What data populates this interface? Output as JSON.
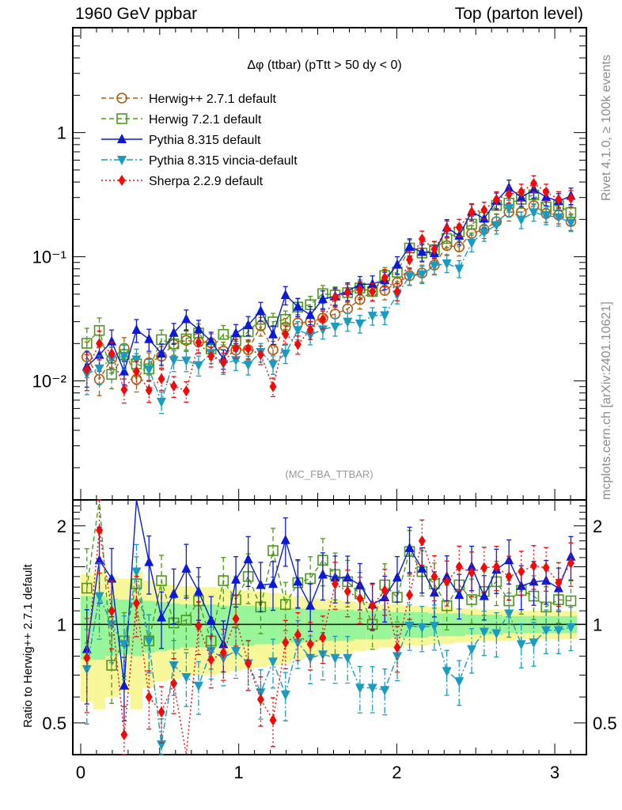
{
  "header": {
    "left": "1960 GeV ppbar",
    "right": "Top (parton level)"
  },
  "side_labels": {
    "rivet": "Rivet 4.1.0, ≥ 100k events",
    "mcplots": "mcplots.cern.ch [arXiv:2401.10621]"
  },
  "chart_data": [
    {
      "type": "scatter",
      "panel": "main",
      "title": "Δφ (ttbar) (pTtt > 50 dy < 0)",
      "annotation": "(MC_FBA_TTBAR)",
      "xlabel": "",
      "ylabel": "",
      "yscale": "log",
      "xlim": [
        -0.05,
        3.2
      ],
      "ylim": [
        0.0011,
        7.0
      ],
      "y_tick_labels": [
        {
          "value": 1,
          "label": "1"
        },
        {
          "value": 0.1,
          "label": "10⁻¹"
        },
        {
          "value": 0.01,
          "label": "10⁻²"
        }
      ],
      "legend_position": "top-left",
      "x": [
        0.039,
        0.118,
        0.196,
        0.275,
        0.353,
        0.432,
        0.511,
        0.589,
        0.668,
        0.746,
        0.825,
        0.903,
        0.982,
        1.06,
        1.139,
        1.217,
        1.296,
        1.374,
        1.453,
        1.532,
        1.61,
        1.689,
        1.767,
        1.846,
        1.924,
        2.003,
        2.081,
        2.16,
        2.238,
        2.317,
        2.395,
        2.474,
        2.553,
        2.631,
        2.71,
        2.788,
        2.867,
        2.945,
        3.024,
        3.102
      ],
      "series": [
        {
          "name": "Herwig++ 2.7.1 default",
          "color": "#b35a0f",
          "marker": "open-circle",
          "line": "dashed",
          "values": [
            0.0156,
            0.0103,
            0.0151,
            0.0183,
            0.0103,
            0.014,
            0.0158,
            0.0197,
            0.0212,
            0.0206,
            0.0203,
            0.0174,
            0.0177,
            0.0178,
            0.0277,
            0.0178,
            0.0272,
            0.0293,
            0.0298,
            0.0321,
            0.0346,
            0.0381,
            0.0452,
            0.0525,
            0.0535,
            0.0621,
            0.0704,
            0.0739,
            0.0856,
            0.123,
            0.12,
            0.154,
            0.166,
            0.192,
            0.229,
            0.229,
            0.258,
            0.223,
            0.217,
            0.192
          ]
        },
        {
          "name": "Herwig 7.2.1 default",
          "color": "#4c9a1c",
          "marker": "open-square",
          "line": "dashed",
          "values": [
            0.0201,
            0.0255,
            0.0113,
            0.0163,
            0.0137,
            0.0125,
            0.0215,
            0.0199,
            0.0218,
            0.0243,
            0.0181,
            0.0237,
            0.0211,
            0.0249,
            0.0313,
            0.0299,
            0.0313,
            0.0393,
            0.0411,
            0.0504,
            0.0491,
            0.0514,
            0.056,
            0.0525,
            0.0706,
            0.0751,
            0.1176,
            0.1072,
            0.1138,
            0.1402,
            0.1584,
            0.1833,
            0.2092,
            0.2592,
            0.2702,
            0.2908,
            0.3148,
            0.252,
            0.2582,
            0.2266
          ]
        },
        {
          "name": "Pythia 8.315 default",
          "color": "#0a1ad6",
          "marker": "filled-triangle-up",
          "line": "solid",
          "values": [
            0.0131,
            0.0162,
            0.0208,
            0.0119,
            0.0258,
            0.0217,
            0.0166,
            0.0244,
            0.0314,
            0.026,
            0.0209,
            0.0151,
            0.0242,
            0.0281,
            0.0366,
            0.0237,
            0.0492,
            0.0396,
            0.034,
            0.0456,
            0.0481,
            0.053,
            0.0597,
            0.0604,
            0.0647,
            0.0863,
            0.1204,
            0.1094,
            0.107,
            0.1722,
            0.1476,
            0.231,
            0.2025,
            0.2822,
            0.3595,
            0.3,
            0.3483,
            0.3033,
            0.28,
            0.31
          ]
        },
        {
          "name": "Pythia 8.315 vincia-default",
          "color": "#1a9bbf",
          "marker": "filled-triangle-down",
          "line": "dash-dot",
          "values": [
            0.0114,
            0.0126,
            0.0151,
            0.0159,
            0.0149,
            0.0124,
            0.0068,
            0.0147,
            0.0146,
            0.0134,
            0.0168,
            0.0137,
            0.0147,
            0.0135,
            0.0171,
            0.0136,
            0.0166,
            0.0257,
            0.0234,
            0.026,
            0.0274,
            0.03,
            0.029,
            0.0335,
            0.0338,
            0.0496,
            0.0697,
            0.0722,
            0.0847,
            0.0884,
            0.0804,
            0.1295,
            0.1576,
            0.18,
            0.247,
            0.199,
            0.228,
            0.214,
            0.208,
            0.188
          ]
        },
        {
          "name": "Sherpa 2.2.9 default",
          "color": "#f00a0a",
          "marker": "filled-diamond",
          "line": "dotted",
          "values": [
            0.0123,
            0.02,
            0.0166,
            0.0085,
            0.0119,
            0.0084,
            0.0104,
            0.0091,
            0.0083,
            0.0204,
            0.0158,
            0.0142,
            0.0184,
            0.0182,
            0.0163,
            0.009,
            0.0238,
            0.0197,
            0.0258,
            0.0313,
            0.047,
            0.0516,
            0.0543,
            0.0525,
            0.0679,
            0.0526,
            0.0947,
            0.139,
            0.115,
            0.168,
            0.173,
            0.229,
            0.238,
            0.289,
            0.32,
            0.333,
            0.39,
            0.333,
            0.29,
            0.296
          ]
        }
      ]
    },
    {
      "type": "scatter",
      "panel": "ratio",
      "ylabel": "Ratio to Herwig++ 2.7.1 default",
      "xlabel": "",
      "yscale": "log",
      "xlim": [
        -0.05,
        3.2
      ],
      "ylim": [
        0.4,
        2.4
      ],
      "y_tick_labels": [
        {
          "value": 2,
          "label": "2"
        },
        {
          "value": 1,
          "label": "1"
        },
        {
          "value": 0.5,
          "label": "0.5"
        }
      ],
      "x_tick_labels": [
        {
          "value": 0,
          "label": "0"
        },
        {
          "value": 1,
          "label": "1"
        },
        {
          "value": 2,
          "label": "2"
        },
        {
          "value": 3,
          "label": "3"
        }
      ],
      "reference_line": 1,
      "bands": {
        "inner_color": "#99f599",
        "outer_color": "#f7f799",
        "inner_halfwidth": [
          0.22,
          0.22,
          0.2,
          0.19,
          0.2,
          0.18,
          0.17,
          0.16,
          0.15,
          0.15,
          0.15,
          0.14,
          0.14,
          0.14,
          0.13,
          0.13,
          0.12,
          0.12,
          0.12,
          0.11,
          0.11,
          0.11,
          0.1,
          0.1,
          0.1,
          0.09,
          0.09,
          0.09,
          0.08,
          0.08,
          0.08,
          0.07,
          0.07,
          0.07,
          0.06,
          0.06,
          0.06,
          0.06,
          0.06,
          0.06
        ],
        "outer_halfwidth": [
          0.42,
          0.45,
          0.4,
          0.38,
          0.45,
          0.36,
          0.33,
          0.32,
          0.31,
          0.3,
          0.3,
          0.29,
          0.28,
          0.27,
          0.26,
          0.25,
          0.24,
          0.22,
          0.21,
          0.2,
          0.19,
          0.18,
          0.17,
          0.16,
          0.15,
          0.15,
          0.14,
          0.14,
          0.13,
          0.13,
          0.12,
          0.12,
          0.11,
          0.11,
          0.11,
          0.1,
          0.1,
          0.1,
          0.1,
          0.1
        ]
      },
      "series": [
        {
          "name": "Herwig 7.2.1 default",
          "values": [
            1.29,
            2.48,
            0.75,
            0.89,
            1.33,
            0.89,
            1.36,
            1.01,
            1.03,
            1.18,
            0.89,
            1.36,
            1.19,
            1.4,
            1.13,
            1.68,
            1.15,
            1.34,
            1.38,
            1.57,
            1.42,
            1.35,
            1.24,
            1.0,
            1.32,
            1.21,
            1.67,
            1.45,
            1.33,
            1.14,
            1.32,
            1.19,
            1.26,
            1.35,
            1.18,
            1.27,
            1.22,
            1.13,
            1.19,
            1.18
          ]
        },
        {
          "name": "Pythia 8.315 default",
          "values": [
            0.84,
            1.57,
            1.38,
            0.65,
            2.5,
            1.55,
            1.05,
            1.24,
            1.48,
            1.26,
            1.03,
            0.87,
            1.37,
            1.58,
            1.32,
            1.33,
            1.81,
            1.35,
            1.14,
            1.42,
            1.39,
            1.39,
            1.32,
            1.15,
            1.21,
            1.39,
            1.71,
            1.48,
            1.25,
            1.4,
            1.23,
            1.5,
            1.22,
            1.47,
            1.57,
            1.31,
            1.35,
            1.36,
            1.29,
            1.61
          ]
        },
        {
          "name": "Pythia 8.315 vincia-default",
          "values": [
            0.73,
            1.22,
            1.0,
            0.87,
            1.45,
            0.89,
            0.43,
            0.75,
            0.69,
            0.65,
            0.83,
            0.79,
            0.83,
            0.76,
            0.62,
            0.77,
            0.61,
            0.88,
            0.79,
            0.81,
            0.79,
            0.79,
            0.64,
            0.64,
            0.63,
            0.8,
            0.99,
            0.98,
            0.99,
            0.72,
            0.67,
            0.84,
            0.95,
            0.94,
            1.08,
            0.87,
            0.88,
            0.96,
            0.96,
            0.98
          ]
        },
        {
          "name": "Sherpa 2.2.9 default",
          "values": [
            0.79,
            1.94,
            1.1,
            0.46,
            1.16,
            0.6,
            0.54,
            0.66,
            0.39,
            0.99,
            0.78,
            0.82,
            1.04,
            0.76,
            0.59,
            0.51,
            0.88,
            0.93,
            0.87,
            0.91,
            1.33,
            1.26,
            1.2,
            1.14,
            1.27,
            0.85,
            1.23,
            1.8,
            1.4,
            1.35,
            1.5,
            1.44,
            1.49,
            1.5,
            1.4,
            1.45,
            1.51,
            1.49,
            1.34,
            1.54
          ]
        }
      ]
    }
  ]
}
